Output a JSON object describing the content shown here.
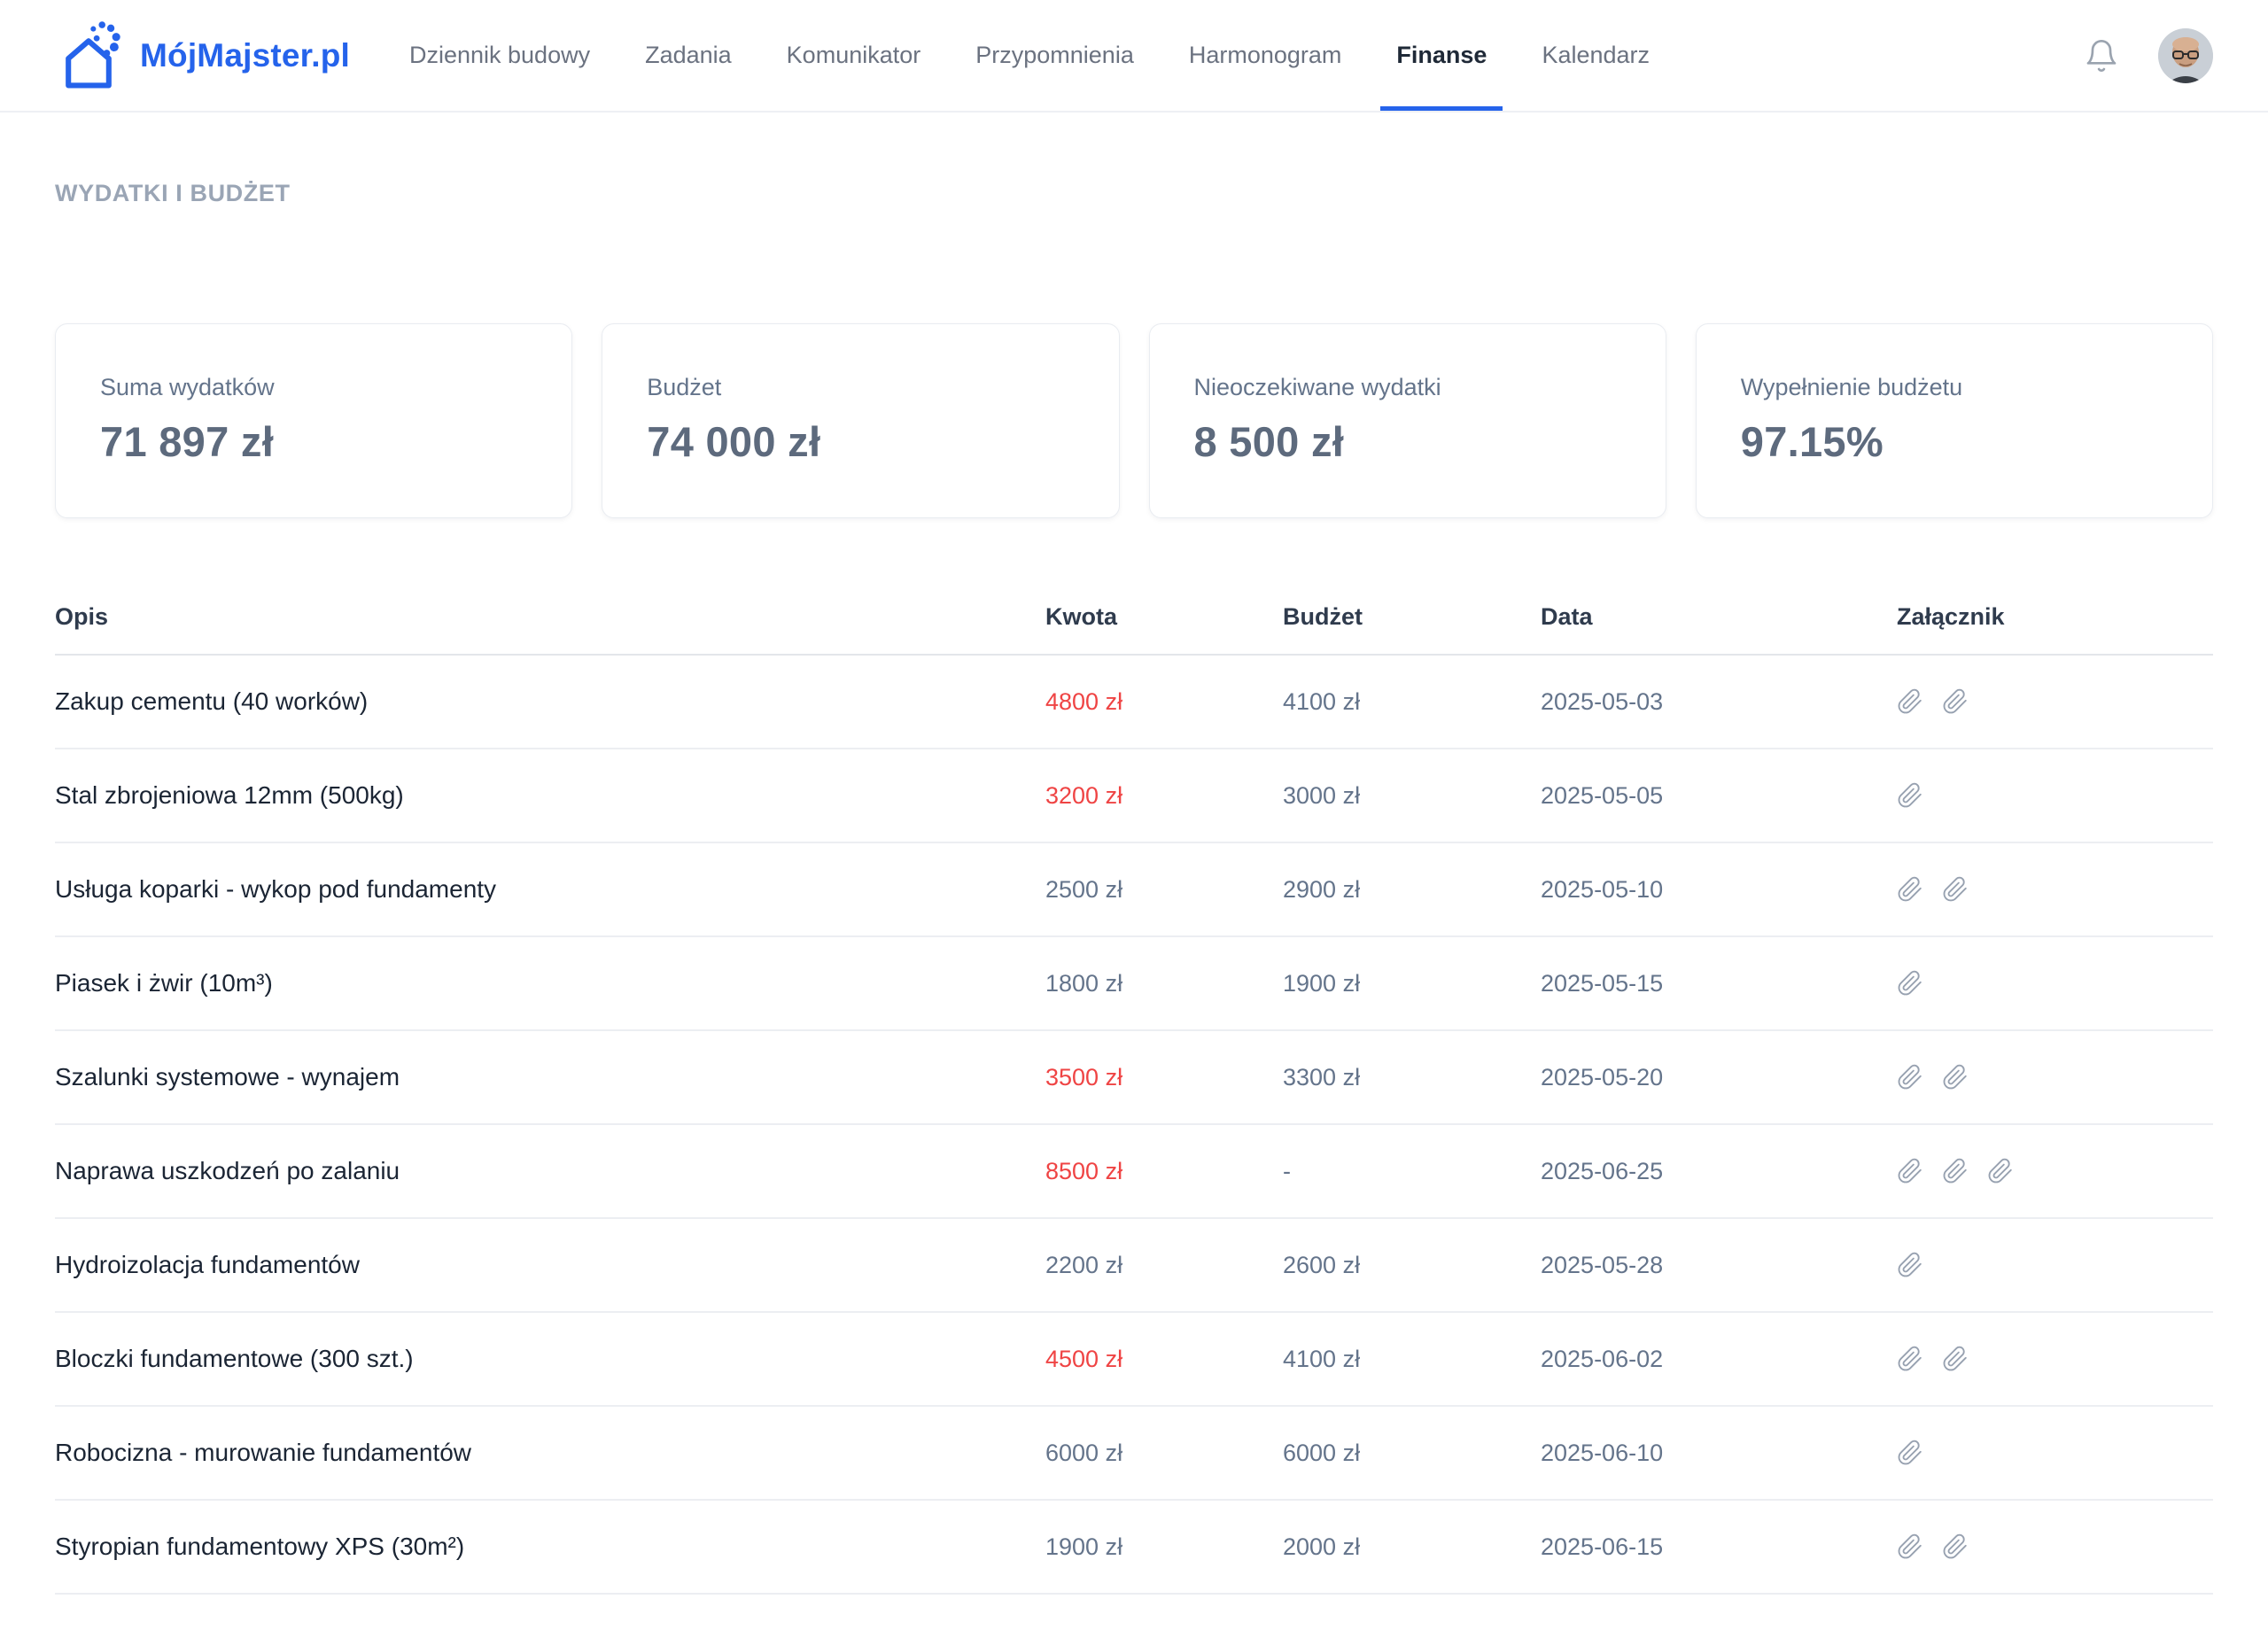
{
  "brand": {
    "name": "MójMajster.pl",
    "logo_icon": "house-logo-icon"
  },
  "nav": {
    "items": [
      {
        "label": "Dziennik budowy",
        "active": false
      },
      {
        "label": "Zadania",
        "active": false
      },
      {
        "label": "Komunikator",
        "active": false
      },
      {
        "label": "Przypomnienia",
        "active": false
      },
      {
        "label": "Harmonogram",
        "active": false
      },
      {
        "label": "Finanse",
        "active": true
      },
      {
        "label": "Kalendarz",
        "active": false
      }
    ]
  },
  "header_icons": {
    "bell": "notification-bell-icon",
    "avatar": "user-avatar"
  },
  "page": {
    "title": "WYDATKI I BUDŻET"
  },
  "summary_cards": [
    {
      "label": "Suma wydatków",
      "value": "71 897 zł"
    },
    {
      "label": "Budżet",
      "value": "74 000 zł"
    },
    {
      "label": "Nieoczekiwane wydatki",
      "value": "8 500 zł"
    },
    {
      "label": "Wypełnienie budżetu",
      "value": "97.15%"
    }
  ],
  "table": {
    "columns": [
      "Opis",
      "Kwota",
      "Budżet",
      "Data",
      "Załącznik"
    ],
    "attachment_icon": "paperclip-icon",
    "rows": [
      {
        "opis": "Zakup cementu (40 worków)",
        "kwota": "4800 zł",
        "over_budget": true,
        "budzet": "4100 zł",
        "data": "2025-05-03",
        "attachments": 2
      },
      {
        "opis": "Stal zbrojeniowa 12mm (500kg)",
        "kwota": "3200 zł",
        "over_budget": true,
        "budzet": "3000 zł",
        "data": "2025-05-05",
        "attachments": 1
      },
      {
        "opis": "Usługa koparki - wykop pod fundamenty",
        "kwota": "2500 zł",
        "over_budget": false,
        "budzet": "2900 zł",
        "data": "2025-05-10",
        "attachments": 2
      },
      {
        "opis": "Piasek i żwir (10m³)",
        "kwota": "1800 zł",
        "over_budget": false,
        "budzet": "1900 zł",
        "data": "2025-05-15",
        "attachments": 1
      },
      {
        "opis": "Szalunki systemowe - wynajem",
        "kwota": "3500 zł",
        "over_budget": true,
        "budzet": "3300 zł",
        "data": "2025-05-20",
        "attachments": 2
      },
      {
        "opis": "Naprawa uszkodzeń po zalaniu",
        "kwota": "8500 zł",
        "over_budget": true,
        "budzet": "-",
        "data": "2025-06-25",
        "attachments": 3
      },
      {
        "opis": "Hydroizolacja fundamentów",
        "kwota": "2200 zł",
        "over_budget": false,
        "budzet": "2600 zł",
        "data": "2025-05-28",
        "attachments": 1
      },
      {
        "opis": "Bloczki fundamentowe (300 szt.)",
        "kwota": "4500 zł",
        "over_budget": true,
        "budzet": "4100 zł",
        "data": "2025-06-02",
        "attachments": 2
      },
      {
        "opis": "Robocizna - murowanie fundamentów",
        "kwota": "6000 zł",
        "over_budget": false,
        "budzet": "6000 zł",
        "data": "2025-06-10",
        "attachments": 1
      },
      {
        "opis": "Styropian fundamentowy XPS (30m²)",
        "kwota": "1900 zł",
        "over_budget": false,
        "budzet": "2000 zł",
        "data": "2025-06-15",
        "attachments": 2
      }
    ]
  },
  "colors": {
    "accent": "#2563eb",
    "over_budget": "#ef4444",
    "muted_text": "#64748b",
    "dark_text": "#1b2534",
    "section_title": "#9aa5b5"
  }
}
